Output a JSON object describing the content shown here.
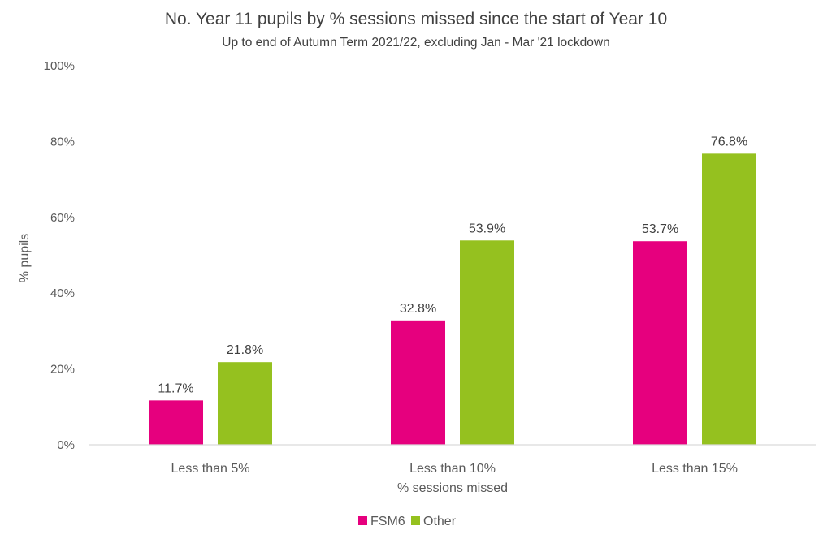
{
  "chart_data": {
    "type": "bar",
    "title": "No. Year 11 pupils by % sessions missed since the start of Year 10",
    "subtitle": "Up to end of Autumn Term 2021/22, excluding Jan - Mar '21 lockdown",
    "xlabel": "% sessions missed",
    "ylabel": "% pupils",
    "categories": [
      "Less than 5%",
      "Less than 10%",
      "Less than 15%"
    ],
    "series": [
      {
        "name": "FSM6",
        "color": "#e6007e",
        "values": [
          11.7,
          32.8,
          53.7
        ],
        "labels": [
          "11.7%",
          "32.8%",
          "53.7%"
        ]
      },
      {
        "name": "Other",
        "color": "#95c11f",
        "values": [
          21.8,
          53.9,
          76.8
        ],
        "labels": [
          "21.8%",
          "53.9%",
          "76.8%"
        ]
      }
    ],
    "ylim": [
      0,
      100
    ],
    "yticks": [
      0,
      20,
      40,
      60,
      80,
      100
    ],
    "ytick_labels": [
      "0%",
      "20%",
      "40%",
      "60%",
      "80%",
      "100%"
    ],
    "grid": false,
    "legend_position": "bottom"
  }
}
